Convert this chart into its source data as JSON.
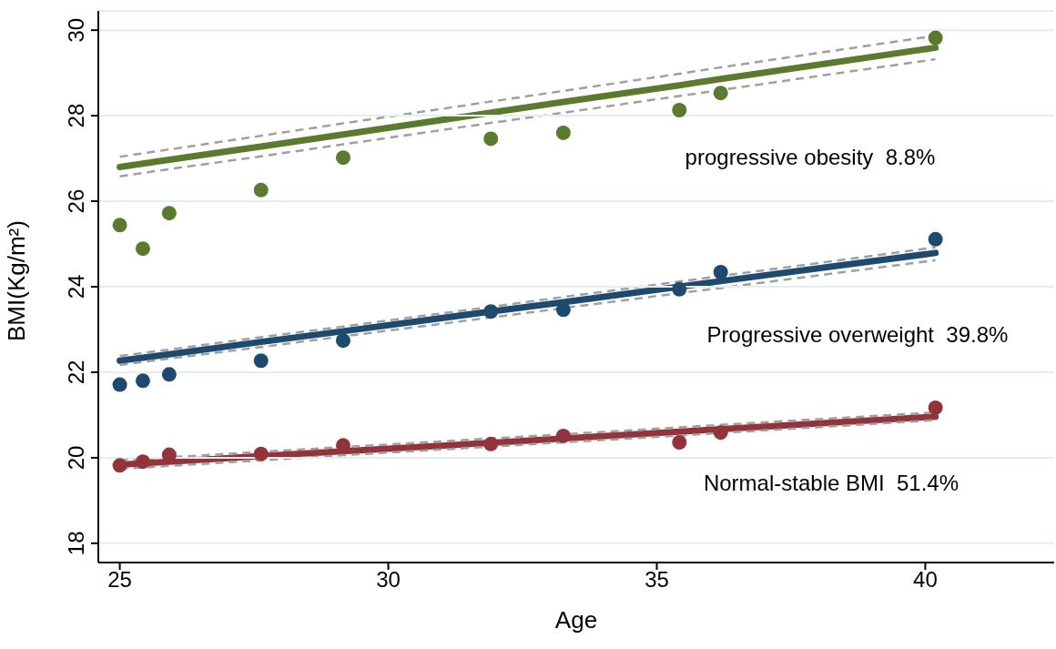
{
  "chart_data": {
    "type": "scatter",
    "xlabel": "Age",
    "ylabel": "BMI(Kg/m²)",
    "x": [
      25.0,
      25.43,
      25.92,
      27.63,
      29.16,
      31.91,
      33.26,
      35.42,
      36.19,
      40.19
    ],
    "series": [
      {
        "color": "#5a7a2e",
        "marker": "circle",
        "values": [
          25.44,
          24.89,
          25.72,
          26.26,
          27.02,
          27.46,
          27.6,
          28.13,
          28.53,
          29.82
        ]
      },
      {
        "color": "#1f4a70",
        "marker": "circle",
        "values": [
          21.71,
          21.8,
          21.95,
          22.27,
          22.74,
          23.42,
          23.46,
          23.94,
          24.34,
          25.11
        ]
      },
      {
        "color": "#93343c",
        "marker": "circle",
        "values": [
          19.82,
          19.91,
          20.07,
          20.09,
          20.29,
          20.32,
          20.51,
          20.36,
          20.59,
          21.17
        ]
      },
      {
        "type": "line",
        "color": "#5a7a2e",
        "line_style": "solid",
        "values": [
          26.8,
          26.88,
          26.97,
          27.28,
          27.56,
          28.07,
          28.32,
          28.71,
          28.86,
          29.59
        ]
      },
      {
        "type": "line",
        "color": "#a0a0a0",
        "line_style": "dashed",
        "values": [
          26.58,
          26.66,
          26.75,
          27.05,
          27.33,
          27.83,
          28.07,
          28.46,
          28.6,
          29.32
        ]
      },
      {
        "type": "line",
        "color": "#a0a0a0",
        "line_style": "dashed",
        "values": [
          27.04,
          27.12,
          27.21,
          27.53,
          27.82,
          28.33,
          28.58,
          28.98,
          29.13,
          29.87
        ]
      },
      {
        "type": "line",
        "color": "#1f4a70",
        "line_style": "solid",
        "values": [
          22.27,
          22.34,
          22.42,
          22.71,
          22.96,
          23.42,
          23.64,
          24.0,
          24.13,
          24.79
        ]
      },
      {
        "type": "line",
        "color": "#a0a0a0",
        "line_style": "dashed",
        "values": [
          22.17,
          22.24,
          22.32,
          22.59,
          22.84,
          23.28,
          23.5,
          23.85,
          23.97,
          24.62
        ]
      },
      {
        "type": "line",
        "color": "#a0a0a0",
        "line_style": "dashed",
        "values": [
          22.38,
          22.45,
          22.53,
          22.82,
          23.07,
          23.53,
          23.76,
          24.12,
          24.25,
          24.92
        ]
      },
      {
        "type": "line",
        "color": "#93343c",
        "line_style": "solid",
        "values": [
          19.84,
          19.87,
          19.91,
          20.04,
          20.15,
          20.35,
          20.45,
          20.61,
          20.67,
          20.96
        ]
      },
      {
        "type": "line",
        "color": "#a0a0a0",
        "line_style": "dashed",
        "values": [
          19.74,
          19.77,
          19.81,
          19.94,
          20.06,
          20.26,
          20.36,
          20.52,
          20.58,
          20.88
        ]
      },
      {
        "type": "line",
        "color": "#a0a0a0",
        "line_style": "dashed",
        "values": [
          19.94,
          19.97,
          20.01,
          20.14,
          20.25,
          20.45,
          20.55,
          20.71,
          20.77,
          21.06
        ]
      }
    ],
    "annotations": [
      "progressive obesity  8.8%",
      "Progressive overweight  39.8%",
      "Normal-stable BMI  51.4%"
    ],
    "xlim": [
      24.6,
      42.4
    ],
    "ylim": [
      17.55,
      30.45
    ],
    "xticks": [
      25,
      30,
      35,
      40
    ],
    "yticks": [
      18,
      20,
      22,
      24,
      26,
      28,
      30
    ],
    "grid": "y"
  }
}
